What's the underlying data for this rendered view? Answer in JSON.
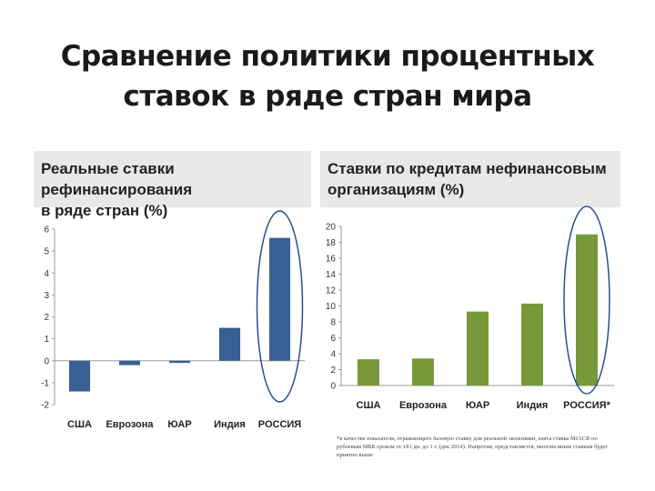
{
  "slide": {
    "title_line1": "Сравнение политики процентных",
    "title_line2": "ставок в ряде стран мира",
    "footnote": "*в качестве показателя, отражающего базовую ставку для реальной экономики, взята ставка MIACR по рублевым МБК сроком от 181 дн. до 1 г. (дек 2014). Напротив, представляется, многим иным ставкам будет приятно выше"
  },
  "left_panel": {
    "title_line1": "Реальные ставки рефинансирования",
    "title_line2": "в ряде стран (%)"
  },
  "right_panel": {
    "title_line1": "Ставки по кредитам нефинансовым",
    "title_line2": "организациям (%)"
  },
  "colors": {
    "left_bar": "#3a5f95",
    "right_bar": "#77993a",
    "highlight_ellipse": "#2a4f8f"
  },
  "chart_data": [
    {
      "type": "bar",
      "title": "Реальные ставки рефинансирования в ряде стран (%)",
      "categories": [
        "США",
        "Еврозона",
        "ЮАР",
        "Индия",
        "РОССИЯ"
      ],
      "values": [
        -1.4,
        -0.2,
        -0.1,
        1.5,
        5.6
      ],
      "ylim": [
        -2,
        6
      ],
      "yticks": [
        -2,
        -1,
        0,
        1,
        2,
        3,
        4,
        5,
        6
      ],
      "highlight": "РОССИЯ",
      "grid": false
    },
    {
      "type": "bar",
      "title": "Ставки по кредитам нефинансовым организациям (%)",
      "categories": [
        "США",
        "Еврозона",
        "ЮАР",
        "Индия",
        "РОССИЯ*"
      ],
      "values": [
        3.3,
        3.4,
        9.3,
        10.3,
        19.0
      ],
      "ylim": [
        0,
        20
      ],
      "yticks": [
        0,
        2,
        4,
        6,
        8,
        10,
        12,
        14,
        16,
        18,
        20
      ],
      "highlight": "РОССИЯ*",
      "grid": false
    }
  ]
}
